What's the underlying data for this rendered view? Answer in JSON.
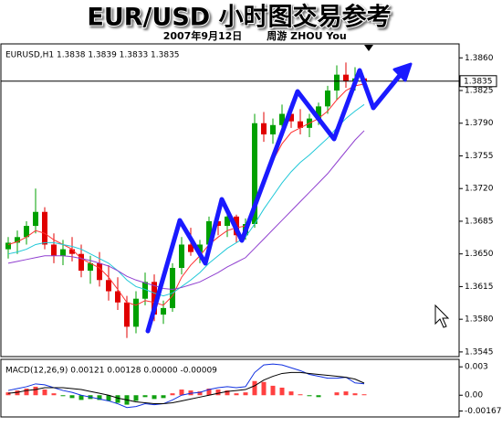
{
  "title": "EUR/USD 小时图交易参考",
  "date": "2007年9月12日",
  "author": "周游 ZHOU You",
  "chart_data": [
    {
      "type": "candlestick",
      "header": "EURUSD,H1 1.3838 1.3839 1.3833 1.3835",
      "open": [
        1.3655,
        1.3662,
        1.3668,
        1.368,
        1.3695,
        1.366,
        1.3648,
        1.3655,
        1.365,
        1.3632,
        1.364,
        1.3622,
        1.361,
        1.3598,
        1.3572,
        1.3602,
        1.362,
        1.3585,
        1.3592,
        1.3635,
        1.366,
        1.3652,
        1.366,
        1.3685,
        1.368,
        1.369,
        1.367,
        1.3682,
        1.379,
        1.3778,
        1.3788,
        1.38,
        1.3792,
        1.3785,
        1.3795,
        1.3808,
        1.3825,
        1.3842,
        1.3835,
        1.3838
      ],
      "high": [
        1.3668,
        1.3675,
        1.3685,
        1.372,
        1.37,
        1.3672,
        1.3665,
        1.3668,
        1.366,
        1.3648,
        1.3652,
        1.3638,
        1.3625,
        1.3605,
        1.361,
        1.363,
        1.3628,
        1.36,
        1.364,
        1.3668,
        1.3678,
        1.3665,
        1.369,
        1.3698,
        1.3695,
        1.3692,
        1.3688,
        1.38,
        1.3802,
        1.3795,
        1.381,
        1.3812,
        1.3805,
        1.38,
        1.3812,
        1.383,
        1.3852,
        1.3855,
        1.385,
        1.3839
      ],
      "low": [
        1.3645,
        1.365,
        1.366,
        1.3672,
        1.3655,
        1.364,
        1.3638,
        1.3642,
        1.3625,
        1.3618,
        1.3615,
        1.36,
        1.359,
        1.356,
        1.3565,
        1.3595,
        1.3578,
        1.3575,
        1.3588,
        1.3628,
        1.3648,
        1.364,
        1.3655,
        1.367,
        1.3668,
        1.3662,
        1.3665,
        1.3678,
        1.377,
        1.3768,
        1.378,
        1.3785,
        1.3778,
        1.3775,
        1.3788,
        1.38,
        1.3815,
        1.3828,
        1.3825,
        1.3833
      ],
      "close": [
        1.3662,
        1.3668,
        1.368,
        1.3695,
        1.366,
        1.3648,
        1.3655,
        1.365,
        1.3632,
        1.364,
        1.3622,
        1.361,
        1.3598,
        1.3572,
        1.3602,
        1.362,
        1.3585,
        1.3592,
        1.3635,
        1.366,
        1.3652,
        1.366,
        1.3685,
        1.368,
        1.369,
        1.367,
        1.3682,
        1.379,
        1.3778,
        1.3788,
        1.38,
        1.3792,
        1.3785,
        1.3795,
        1.3808,
        1.3825,
        1.3842,
        1.3835,
        1.3838,
        1.3835
      ],
      "up_color": "#00a000",
      "down_color": "#e00000",
      "series": [
        {
          "color": "#ff3030",
          "values": [
            1.366,
            1.3663,
            1.3668,
            1.3675,
            1.3672,
            1.3665,
            1.366,
            1.3655,
            1.3645,
            1.364,
            1.3635,
            1.3625,
            1.3612,
            1.3598,
            1.3595,
            1.36,
            1.3598,
            1.3595,
            1.3605,
            1.3625,
            1.3638,
            1.3648,
            1.366,
            1.3668,
            1.3675,
            1.3678,
            1.368,
            1.3705,
            1.373,
            1.375,
            1.3768,
            1.378,
            1.3785,
            1.379,
            1.3795,
            1.3803,
            1.3815,
            1.3825,
            1.383,
            1.3832
          ]
        },
        {
          "color": "#20c8d8",
          "values": [
            1.365,
            1.3652,
            1.3655,
            1.366,
            1.3662,
            1.3662,
            1.366,
            1.3658,
            1.3655,
            1.365,
            1.3645,
            1.364,
            1.3632,
            1.3622,
            1.3615,
            1.3612,
            1.3608,
            1.3605,
            1.3608,
            1.3615,
            1.3622,
            1.363,
            1.364,
            1.3648,
            1.3656,
            1.3662,
            1.3668,
            1.3682,
            1.3698,
            1.3712,
            1.3726,
            1.3738,
            1.3748,
            1.3756,
            1.3765,
            1.3774,
            1.3785,
            1.3795,
            1.3803,
            1.381
          ]
        },
        {
          "color": "#9040d0",
          "values": [
            1.364,
            1.3642,
            1.3644,
            1.3646,
            1.3648,
            1.3648,
            1.3648,
            1.3647,
            1.3645,
            1.3643,
            1.364,
            1.3637,
            1.3632,
            1.3626,
            1.3622,
            1.3619,
            1.3616,
            1.3613,
            1.3612,
            1.3614,
            1.3617,
            1.362,
            1.3625,
            1.363,
            1.3636,
            1.3641,
            1.3646,
            1.3656,
            1.3666,
            1.3676,
            1.3686,
            1.3696,
            1.3706,
            1.3716,
            1.3726,
            1.3736,
            1.3748,
            1.376,
            1.3772,
            1.3782
          ]
        }
      ],
      "last_price": 1.3835,
      "last_price_label": "1.3835",
      "ylim": [
        1.354,
        1.3873
      ],
      "yticks": [
        {
          "value": 1.386,
          "label": "1.3860"
        },
        {
          "value": 1.3825,
          "label": "1.3825"
        },
        {
          "value": 1.379,
          "label": "1.3790"
        },
        {
          "value": 1.3755,
          "label": "1.3755"
        },
        {
          "value": 1.372,
          "label": "1.3720"
        },
        {
          "value": 1.3685,
          "label": "1.3685"
        },
        {
          "value": 1.365,
          "label": "1.3650"
        },
        {
          "value": 1.3615,
          "label": "1.3615"
        },
        {
          "value": 1.358,
          "label": "1.3580"
        },
        {
          "value": 1.3545,
          "label": "1.3545"
        }
      ],
      "grid": false
    },
    {
      "type": "macd",
      "header": "MACD(12,26,9) 0.00121 0.00128 0.00000 -0.00009",
      "histogram": [
        0.0003,
        0.0005,
        0.0007,
        0.0009,
        0.0006,
        0.0002,
        -0.0001,
        -0.0003,
        -0.0005,
        -0.0004,
        -0.0005,
        -0.0006,
        -0.0008,
        -0.001,
        -0.0006,
        -0.0002,
        -0.0004,
        -0.0003,
        0.0002,
        0.0006,
        0.0005,
        0.0004,
        0.0007,
        0.0006,
        0.0005,
        0.0002,
        0.0003,
        0.0015,
        0.0014,
        0.001,
        0.0008,
        0.0004,
        0.0001,
        -0.0001,
        -0.0002,
        0,
        0.0003,
        0.0004,
        0.0002,
        0.0001
      ],
      "up_color": "#ff4040",
      "down_color": "#10a010",
      "series": [
        {
          "color": "#1030e0",
          "values": [
            0.0005,
            0.0007,
            0.0009,
            0.0012,
            0.0011,
            0.0008,
            0.0005,
            0.0003,
            0,
            -0.0002,
            -0.0004,
            -0.0006,
            -0.0009,
            -0.0013,
            -0.0012,
            -0.0009,
            -0.001,
            -0.0009,
            -0.0005,
            0,
            0.0002,
            0.0003,
            0.0006,
            0.0008,
            0.0009,
            0.0008,
            0.0009,
            0.0024,
            0.0032,
            0.0033,
            0.0032,
            0.0029,
            0.0026,
            0.0022,
            0.002,
            0.0018,
            0.0018,
            0.0019,
            0.0013,
            0.00121
          ]
        },
        {
          "color": "#000000",
          "values": [
            0.0002,
            0.0003,
            0.0005,
            0.0006,
            0.0008,
            0.0008,
            0.0008,
            0.0007,
            0.0006,
            0.0004,
            0.0002,
            0,
            -0.0003,
            -0.0005,
            -0.0007,
            -0.0008,
            -0.0009,
            -0.0009,
            -0.0008,
            -0.0006,
            -0.0004,
            -0.0002,
            0,
            0.0002,
            0.0004,
            0.0005,
            0.0006,
            0.001,
            0.0016,
            0.002,
            0.0023,
            0.0024,
            0.0024,
            0.0023,
            0.0022,
            0.0021,
            0.002,
            0.0019,
            0.0017,
            0.00128
          ]
        }
      ],
      "ylim": [
        -0.0022,
        0.0036
      ],
      "yticks": [
        0.003,
        {
          "value": 0,
          "label": "0.00"
        },
        -0.00167
      ]
    }
  ]
}
